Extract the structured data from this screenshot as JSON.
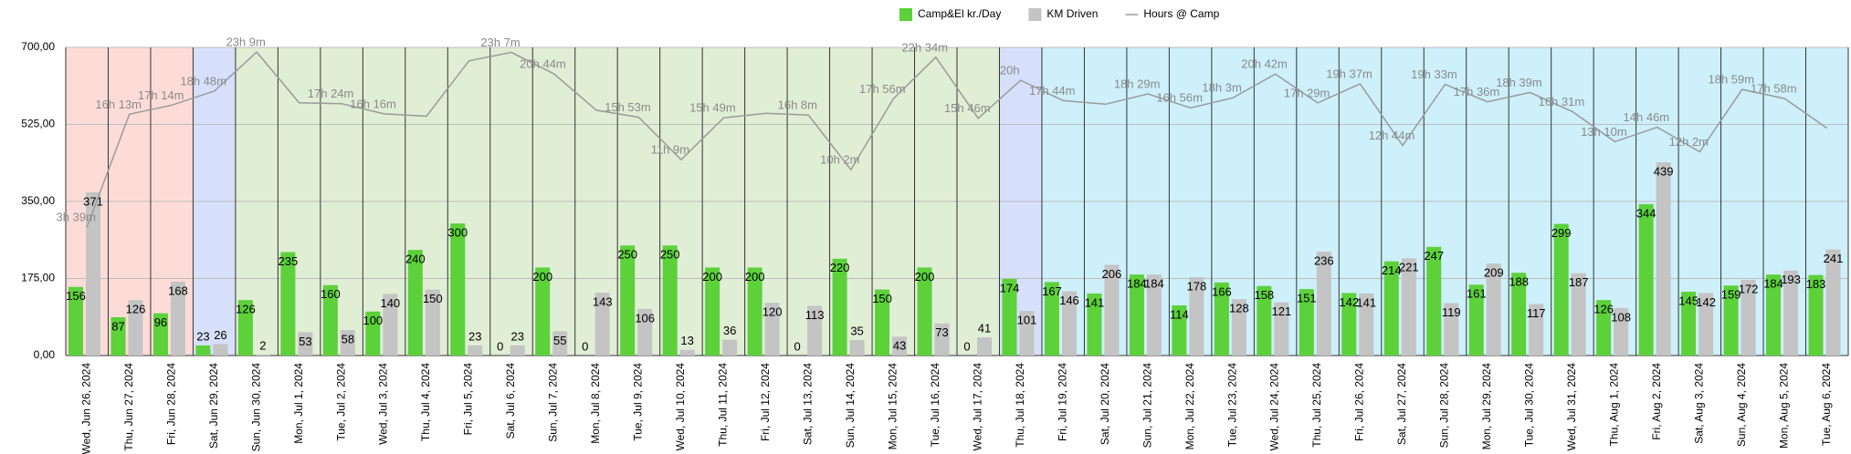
{
  "chart_data": {
    "type": "bar",
    "categories": [
      "Wed, Jun 26, 2024",
      "Thu, Jun 27, 2024",
      "Fri, Jun 28, 2024",
      "Sat, Jun 29, 2024",
      "Sun, Jun 30, 2024",
      "Mon, Jul 1, 2024",
      "Tue, Jul 2, 2024",
      "Wed, Jul 3, 2024",
      "Thu, Jul 4, 2024",
      "Fri, Jul 5, 2024",
      "Sat, Jul 6, 2024",
      "Sun, Jul 7, 2024",
      "Mon, Jul 8, 2024",
      "Tue, Jul 9, 2024",
      "Wed, Jul 10, 2024",
      "Thu, Jul 11, 2024",
      "Fri, Jul 12, 2024",
      "Sat, Jul 13, 2024",
      "Sun, Jul 14, 2024",
      "Mon, Jul 15, 2024",
      "Tue, Jul 16, 2024",
      "Wed, Jul 17, 2024",
      "Thu, Jul 18, 2024",
      "Fri, Jul 19, 2024",
      "Sat, Jul 20, 2024",
      "Sun, Jul 21, 2024",
      "Mon, Jul 22, 2024",
      "Tue, Jul 23, 2024",
      "Wed, Jul 24, 2024",
      "Thu, Jul 25, 2024",
      "Fri, Jul 26, 2024",
      "Sat, Jul 27, 2024",
      "Sun, Jul 28, 2024",
      "Mon, Jul 29, 2024",
      "Tue, Jul 30, 2024",
      "Wed, Jul 31, 2024",
      "Thu, Aug 1, 2024",
      "Fri, Aug 2, 2024",
      "Sat, Aug 3, 2024",
      "Sun, Aug 4, 2024",
      "Mon, Aug 5, 2024",
      "Tue, Aug 6, 2024"
    ],
    "band_colors": [
      "#fddcd8",
      "#fddcd8",
      "#fddcd8",
      "#d6e0fb",
      "#e0eed5",
      "#e0eed5",
      "#e0eed5",
      "#e0eed5",
      "#e0eed5",
      "#e0eed5",
      "#e0eed5",
      "#e0eed5",
      "#e0eed5",
      "#e0eed5",
      "#e0eed5",
      "#e0eed5",
      "#e0eed5",
      "#e0eed5",
      "#e0eed5",
      "#e0eed5",
      "#e0eed5",
      "#e0eed5",
      "#d6e0fb",
      "#cdf0fb",
      "#cdf0fb",
      "#cdf0fb",
      "#cdf0fb",
      "#cdf0fb",
      "#cdf0fb",
      "#cdf0fb",
      "#cdf0fb",
      "#cdf0fb",
      "#cdf0fb",
      "#cdf0fb",
      "#cdf0fb",
      "#cdf0fb",
      "#cdf0fb",
      "#cdf0fb",
      "#cdf0fb",
      "#cdf0fb",
      "#cdf0fb",
      "#cdf0fb"
    ],
    "series": [
      {
        "name": "Camp&El kr./Day",
        "color": "#5cd13a",
        "values": [
          156,
          87,
          96,
          23,
          126,
          235,
          160,
          100,
          240,
          300,
          0,
          200,
          0,
          250,
          250,
          200,
          200,
          0,
          220,
          150,
          200,
          0,
          174,
          167,
          141,
          184,
          114,
          166,
          158,
          151,
          142,
          214,
          247,
          161,
          188,
          299,
          126,
          344,
          145,
          159,
          184,
          183
        ]
      },
      {
        "name": "KM Driven",
        "color": "#c4c4c4",
        "values": [
          371,
          126,
          168,
          26,
          2,
          53,
          58,
          140,
          150,
          23,
          23,
          55,
          143,
          106,
          13,
          36,
          120,
          113,
          35,
          43,
          73,
          41,
          101,
          146,
          206,
          184,
          178,
          128,
          121,
          236,
          141,
          221,
          119,
          209,
          117,
          187,
          108,
          439,
          142,
          172,
          193,
          241
        ]
      },
      {
        "name": "Hours @ Camp",
        "type": "line",
        "axis": "y2",
        "color": "#9a9a9a",
        "values": [
          219,
          973,
          1034,
          1128,
          1389,
          1050,
          1044,
          976,
          960,
          1330,
          1387,
          1244,
          1000,
          953,
          669,
          949,
          980,
          968,
          602,
          1076,
          1354,
          946,
          1200,
          1064,
          1040,
          1109,
          1016,
          1083,
          1242,
          1049,
          1177,
          764,
          1173,
          1056,
          1119,
          991,
          790,
          886,
          722,
          1139,
          1078,
          880
        ],
        "value_labels": [
          "3h 39m",
          "16h 13m",
          "17h 14m",
          "18h 48m",
          "23h 9m",
          null,
          "17h 24m",
          "16h 16m",
          null,
          null,
          "23h 7m",
          "20h 44m",
          null,
          "15h 53m",
          "11h 9m",
          "15h 49m",
          null,
          "16h 8m",
          "10h 2m",
          "17h 56m",
          "22h 34m",
          "15h 46m",
          "20h",
          "17h 44m",
          null,
          "18h 29m",
          "16h 56m",
          "18h 3m",
          "20h 42m",
          "17h 29m",
          "19h 37m",
          "12h 44m",
          "19h 33m",
          "17h 36m",
          "18h 39m",
          "16h 31m",
          "13h 10m",
          "14h 46m",
          "12h 2m",
          "18h 59m",
          "17h 58m",
          null
        ]
      }
    ],
    "ylim": [
      0,
      700
    ],
    "yticks": [
      {
        "value": 0,
        "label": "0,00"
      },
      {
        "value": 175,
        "label": "175,00"
      },
      {
        "value": 350,
        "label": "350,00"
      },
      {
        "value": 525,
        "label": "525,00"
      },
      {
        "value": 700,
        "label": "700,00"
      }
    ],
    "y2lim": [
      -640,
      1420
    ],
    "grid": true,
    "legend": "top"
  }
}
